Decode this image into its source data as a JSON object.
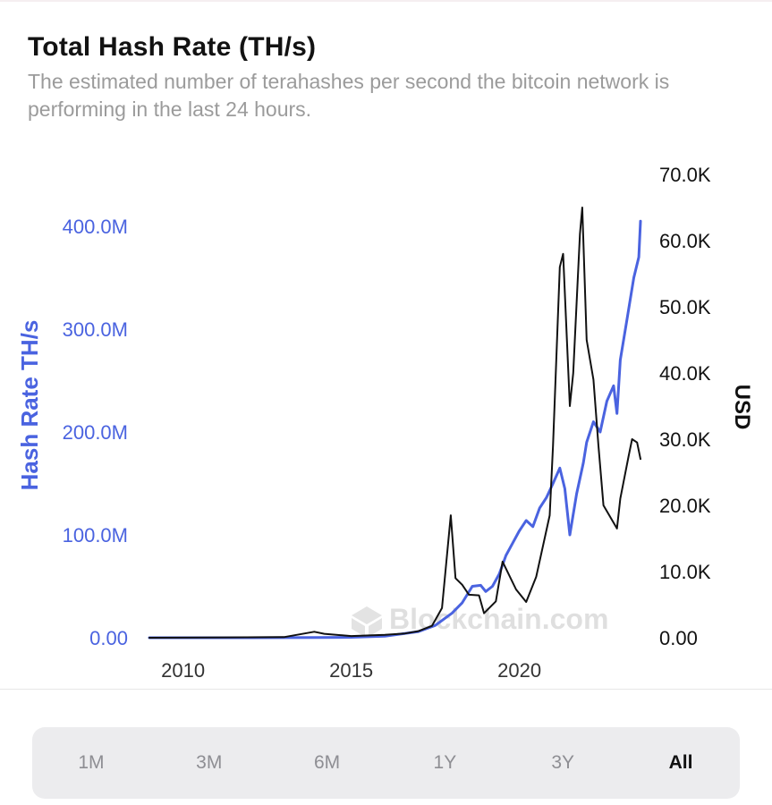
{
  "header": {
    "title": "Total Hash Rate (TH/s)",
    "subtitle": "The estimated number of terahashes per second the bitcoin network is performing in the last 24 hours."
  },
  "watermark": {
    "text": "Blockchain.com",
    "icon": "blockchain-logo-icon"
  },
  "range_selector": {
    "options": [
      "1M",
      "3M",
      "6M",
      "1Y",
      "3Y",
      "All"
    ],
    "selected": "All"
  },
  "colors": {
    "hash_rate": "#4a63e0",
    "price": "#111111",
    "left_axis_text": "#4a63e0",
    "right_axis_text": "#111111",
    "tick_text": "#333333"
  },
  "chart_data": {
    "type": "line",
    "title": "Total Hash Rate (TH/s)",
    "xlabel": "",
    "x_ticks": [
      "2010",
      "2015",
      "2020"
    ],
    "xlim": [
      2009.0,
      2023.6
    ],
    "y_left": {
      "label": "Hash Rate TH/s",
      "ticks": [
        "0.00",
        "100.0M",
        "200.0M",
        "300.0M",
        "400.0M"
      ],
      "lim": [
        0,
        400000000
      ]
    },
    "y_right": {
      "label": "USD",
      "ticks": [
        "0.00",
        "10.0K",
        "20.0K",
        "30.0K",
        "40.0K",
        "50.0K",
        "60.0K",
        "70.0K"
      ],
      "lim": [
        0,
        70000
      ]
    },
    "grid": false,
    "legend": "none",
    "series": [
      {
        "name": "Hash Rate TH/s",
        "axis": "left",
        "x": [
          2009.0,
          2012.0,
          2014.0,
          2015.0,
          2016.0,
          2017.0,
          2017.5,
          2018.0,
          2018.3,
          2018.6,
          2018.85,
          2019.0,
          2019.2,
          2019.4,
          2019.6,
          2019.8,
          2020.0,
          2020.2,
          2020.4,
          2020.6,
          2020.8,
          2021.0,
          2021.2,
          2021.35,
          2021.5,
          2021.7,
          2021.9,
          2022.0,
          2022.2,
          2022.4,
          2022.6,
          2022.8,
          2022.9,
          2023.0,
          2023.2,
          2023.4,
          2023.55,
          2023.6
        ],
        "y": [
          0,
          0,
          200000,
          400000,
          1500000,
          6000000,
          12000000,
          24000000,
          34000000,
          50000000,
          51000000,
          45000000,
          50000000,
          62000000,
          80000000,
          92000000,
          104000000,
          114000000,
          108000000,
          126000000,
          136000000,
          150000000,
          165000000,
          145000000,
          100000000,
          140000000,
          170000000,
          190000000,
          210000000,
          200000000,
          230000000,
          245000000,
          218000000,
          270000000,
          310000000,
          350000000,
          370000000,
          405000000
        ]
      },
      {
        "name": "USD",
        "axis": "right",
        "x": [
          2009.0,
          2013.0,
          2013.9,
          2014.2,
          2015.0,
          2016.0,
          2016.6,
          2017.0,
          2017.4,
          2017.7,
          2017.96,
          2018.1,
          2018.3,
          2018.5,
          2018.8,
          2018.95,
          2019.3,
          2019.5,
          2019.9,
          2020.2,
          2020.5,
          2020.9,
          2021.0,
          2021.2,
          2021.3,
          2021.5,
          2021.6,
          2021.8,
          2021.87,
          2022.0,
          2022.2,
          2022.35,
          2022.5,
          2022.9,
          2023.0,
          2023.25,
          2023.35,
          2023.5,
          2023.6
        ],
        "y": [
          0,
          100,
          900,
          600,
          250,
          450,
          650,
          1000,
          1800,
          4500,
          18500,
          9000,
          8000,
          6500,
          6400,
          3700,
          5500,
          11500,
          7300,
          5400,
          9200,
          18500,
          29000,
          56000,
          58000,
          35000,
          40000,
          61000,
          65000,
          45000,
          39000,
          29000,
          20000,
          16500,
          21000,
          27500,
          30000,
          29500,
          27000
        ]
      }
    ]
  }
}
